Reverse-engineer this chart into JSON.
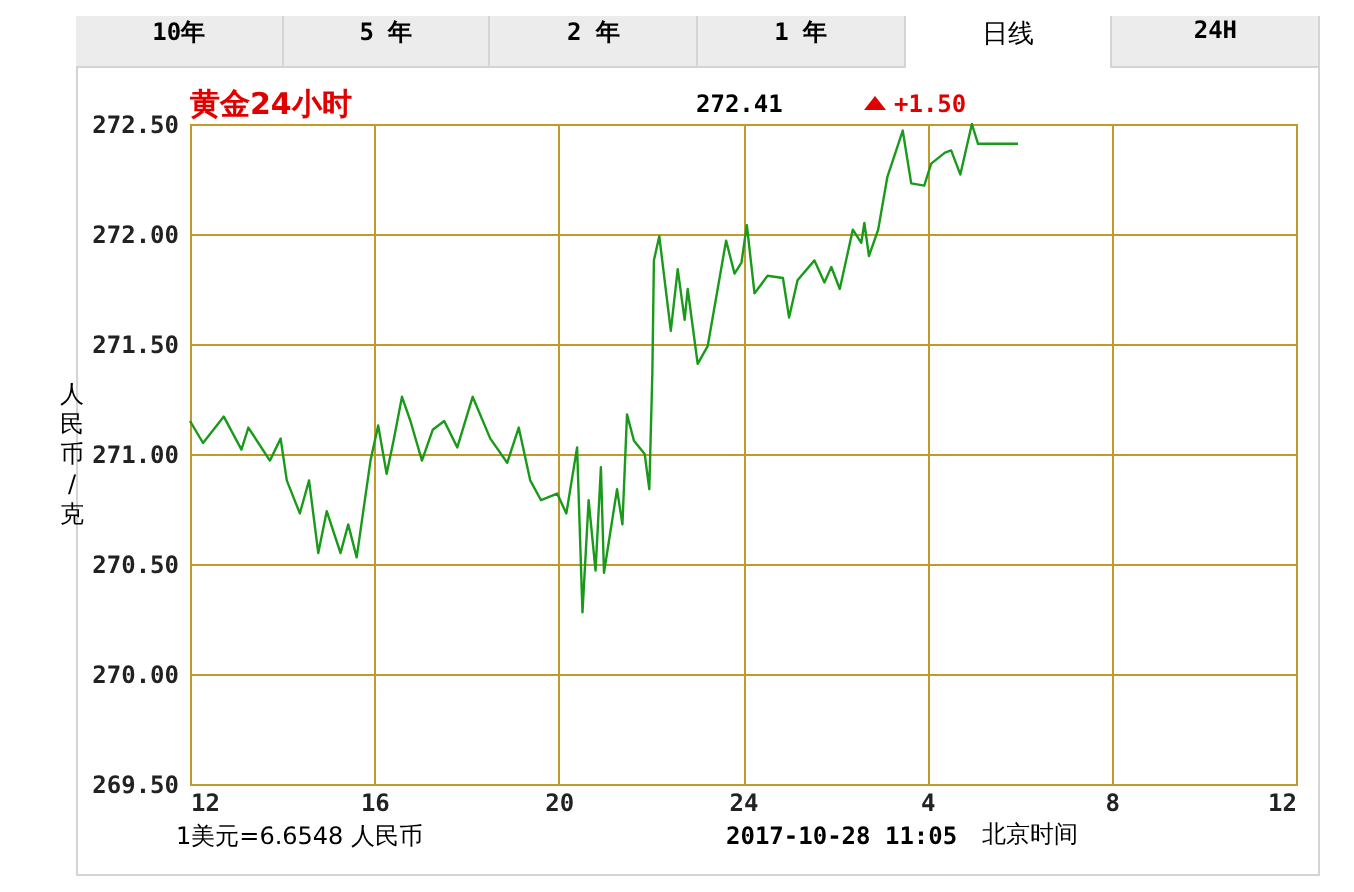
{
  "chart_data": {
    "type": "line",
    "title": "黄金24小时",
    "ylabel": "人民币/克",
    "annotations": [
      "10年",
      "5 年",
      "2 年",
      "1 年",
      "日线",
      "24H",
      "272.41",
      "+1.50",
      "1美元=6.6548 人民币",
      "2017-10-28 11:05",
      "北京时间"
    ],
    "xlim": [
      "2017-10-27T12:00",
      "2017-10-28T12:00"
    ],
    "xticks": [
      {
        "value": "2017-10-27T12:00",
        "label": "12"
      },
      {
        "value": "2017-10-27T16:00",
        "label": "16"
      },
      {
        "value": "2017-10-27T20:00",
        "label": "20"
      },
      {
        "value": "2017-10-28T00:00",
        "label": "24"
      },
      {
        "value": "2017-10-28T04:00",
        "label": "4"
      },
      {
        "value": "2017-10-28T08:00",
        "label": "8"
      },
      {
        "value": "2017-10-28T12:00",
        "label": "12"
      }
    ],
    "ylim": [
      269.5,
      272.5
    ],
    "yticks": [
      {
        "value": 269.5,
        "label": "269.50"
      },
      {
        "value": 270,
        "label": "270.00"
      },
      {
        "value": 270.5,
        "label": "270.50"
      },
      {
        "value": 271,
        "label": "271.00"
      },
      {
        "value": 271.5,
        "label": "271.50"
      },
      {
        "value": 272,
        "label": "272.00"
      },
      {
        "value": 272.5,
        "label": "272.50"
      }
    ],
    "grid": true,
    "line_style": "solid",
    "series": [
      {
        "color": "#1a9a1a",
        "x": [
          "2017-10-27T12:00",
          "2017-10-27T12:17",
          "2017-10-27T12:44",
          "2017-10-27T13:07",
          "2017-10-27T13:16",
          "2017-10-27T13:44",
          "2017-10-27T13:58",
          "2017-10-27T14:06",
          "2017-10-27T14:23",
          "2017-10-27T14:35",
          "2017-10-27T14:47",
          "2017-10-27T14:58",
          "2017-10-27T15:16",
          "2017-10-27T15:26",
          "2017-10-27T15:37",
          "2017-10-27T15:55",
          "2017-10-27T16:05",
          "2017-10-27T16:16",
          "2017-10-27T16:25",
          "2017-10-27T16:36",
          "2017-10-27T16:47",
          "2017-10-27T17:02",
          "2017-10-27T17:16",
          "2017-10-27T17:31",
          "2017-10-27T17:48",
          "2017-10-27T18:08",
          "2017-10-27T18:31",
          "2017-10-27T18:53",
          "2017-10-27T19:08",
          "2017-10-27T19:23",
          "2017-10-27T19:37",
          "2017-10-27T19:58",
          "2017-10-27T20:10",
          "2017-10-27T20:24",
          "2017-10-27T20:31",
          "2017-10-27T20:39",
          "2017-10-27T20:48",
          "2017-10-27T20:55",
          "2017-10-27T20:59",
          "2017-10-27T21:16",
          "2017-10-27T21:23",
          "2017-10-27T21:29",
          "2017-10-27T21:38",
          "2017-10-27T21:52",
          "2017-10-27T21:58",
          "2017-10-27T22:02",
          "2017-10-27T22:04",
          "2017-10-27T22:11",
          "2017-10-27T22:26",
          "2017-10-27T22:35",
          "2017-10-27T22:44",
          "2017-10-27T22:48",
          "2017-10-27T23:01",
          "2017-10-27T23:14",
          "2017-10-27T23:38",
          "2017-10-27T23:49",
          "2017-10-27T23:58",
          "2017-10-28T00:05",
          "2017-10-28T00:15",
          "2017-10-28T00:32",
          "2017-10-28T00:52",
          "2017-10-28T01:00",
          "2017-10-28T01:11",
          "2017-10-28T01:33",
          "2017-10-28T01:46",
          "2017-10-28T01:55",
          "2017-10-28T02:06",
          "2017-10-28T02:23",
          "2017-10-28T02:34",
          "2017-10-28T02:38",
          "2017-10-28T02:44",
          "2017-10-28T02:56",
          "2017-10-28T03:08",
          "2017-10-28T03:28",
          "2017-10-28T03:39",
          "2017-10-28T03:56",
          "2017-10-28T04:05",
          "2017-10-28T04:23",
          "2017-10-28T04:31",
          "2017-10-28T04:43",
          "2017-10-28T04:58",
          "2017-10-28T05:06",
          "2017-10-28T05:58"
        ],
        "values": [
          271.15,
          271.05,
          271.17,
          271.02,
          271.12,
          270.97,
          271.07,
          270.88,
          270.73,
          270.88,
          270.55,
          270.74,
          270.55,
          270.68,
          270.53,
          270.97,
          271.13,
          270.91,
          271.06,
          271.26,
          271.15,
          270.97,
          271.11,
          271.15,
          271.03,
          271.26,
          271.07,
          270.96,
          271.12,
          270.88,
          270.79,
          270.82,
          270.73,
          271.03,
          270.28,
          270.79,
          270.47,
          270.94,
          270.46,
          270.84,
          270.68,
          271.18,
          271.06,
          271.0,
          270.84,
          271.37,
          271.88,
          271.99,
          271.56,
          271.84,
          271.61,
          271.75,
          271.41,
          271.49,
          271.97,
          271.82,
          271.87,
          272.04,
          271.73,
          271.81,
          271.8,
          271.62,
          271.79,
          271.88,
          271.78,
          271.85,
          271.75,
          272.02,
          271.96,
          272.05,
          271.9,
          272.02,
          272.26,
          272.47,
          272.23,
          272.22,
          272.32,
          272.37,
          272.38,
          272.27,
          272.5,
          272.41,
          272.41
        ]
      }
    ]
  }
}
